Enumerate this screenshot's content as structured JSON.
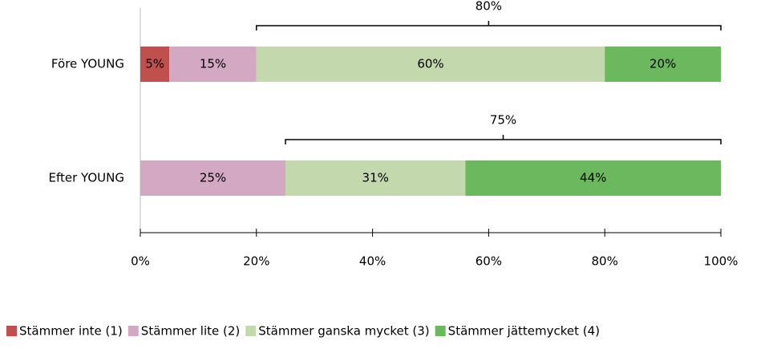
{
  "chart_data": {
    "type": "stacked-bar-horizontal",
    "categories": [
      "Före YOUNG",
      "Efter YOUNG"
    ],
    "series": [
      {
        "name": "Stämmer inte (1)",
        "color": "#c0504d",
        "values": [
          5,
          null
        ],
        "value_labels": [
          "5%",
          null
        ]
      },
      {
        "name": "Stämmer lite (2)",
        "color": "#d3a8c3",
        "values": [
          15,
          25
        ],
        "value_labels": [
          "15%",
          "25%"
        ]
      },
      {
        "name": "Stämmer ganska mycket (3)",
        "color": "#c3d9ad",
        "values": [
          60,
          31
        ],
        "value_labels": [
          "60%",
          "31%"
        ]
      },
      {
        "name": "Stämmer jättemycket (4)",
        "color": "#6cb85e",
        "values": [
          20,
          44
        ],
        "value_labels": [
          "20%",
          "44%"
        ]
      }
    ],
    "annotations": [
      {
        "label": "80%",
        "value": 80,
        "end": 100
      },
      {
        "label": "75%",
        "value": 75,
        "end": 100
      }
    ],
    "xlim": [
      0,
      100
    ],
    "xticks": [
      {
        "value": 0,
        "label": "0%"
      },
      {
        "value": 20,
        "label": "20%"
      },
      {
        "value": 40,
        "label": "40%"
      },
      {
        "value": 60,
        "label": "60%"
      },
      {
        "value": 80,
        "label": "80%"
      },
      {
        "value": 100,
        "label": "100%"
      }
    ],
    "legend": "bottom"
  }
}
